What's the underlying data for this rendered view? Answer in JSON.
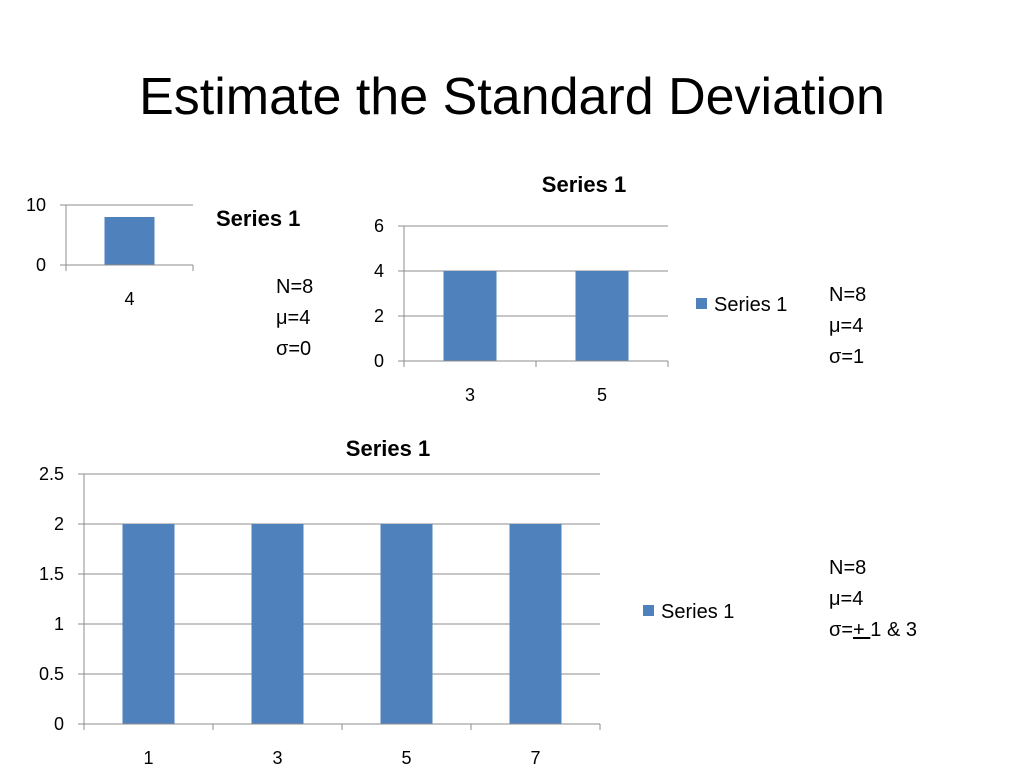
{
  "slide": {
    "title": "Estimate the Standard Deviation"
  },
  "colors": {
    "bar": "#4F81BD",
    "grid": "#8c8c8c",
    "axis": "#8c8c8c"
  },
  "chart_data": [
    {
      "type": "bar",
      "title": "",
      "categories": [
        "4"
      ],
      "series": [
        {
          "name": "",
          "values": [
            8
          ]
        }
      ],
      "ylim": [
        0,
        10
      ],
      "yticks": [
        0,
        10
      ],
      "legend": "Series 1",
      "grid": true
    },
    {
      "type": "bar",
      "title": "Series 1",
      "categories": [
        "3",
        "5"
      ],
      "series": [
        {
          "name": "Series 1",
          "values": [
            4,
            4
          ]
        }
      ],
      "ylim": [
        0,
        6
      ],
      "yticks": [
        0,
        2,
        4,
        6
      ],
      "legend": "Series 1",
      "grid": true
    },
    {
      "type": "bar",
      "title": "Series 1",
      "categories": [
        "1",
        "3",
        "5",
        "7"
      ],
      "series": [
        {
          "name": "Series 1",
          "values": [
            2,
            2,
            2,
            2
          ]
        }
      ],
      "ylim": [
        0,
        2.5
      ],
      "yticks": [
        0,
        0.5,
        1,
        1.5,
        2,
        2.5
      ],
      "legend": "Series 1",
      "grid": true
    }
  ],
  "stats": [
    {
      "n": "N=8",
      "mu": "μ=4",
      "sigma_prefix": "σ=",
      "sigma_pm": "",
      "sigma_suffix": "0"
    },
    {
      "n": "N=8",
      "mu": "μ=4",
      "sigma_prefix": "σ=",
      "sigma_pm": "",
      "sigma_suffix": "1"
    },
    {
      "n": "N=8",
      "mu": "μ=4",
      "sigma_prefix": "σ=",
      "sigma_pm": "+ ",
      "sigma_suffix": " 1 & 3"
    }
  ]
}
